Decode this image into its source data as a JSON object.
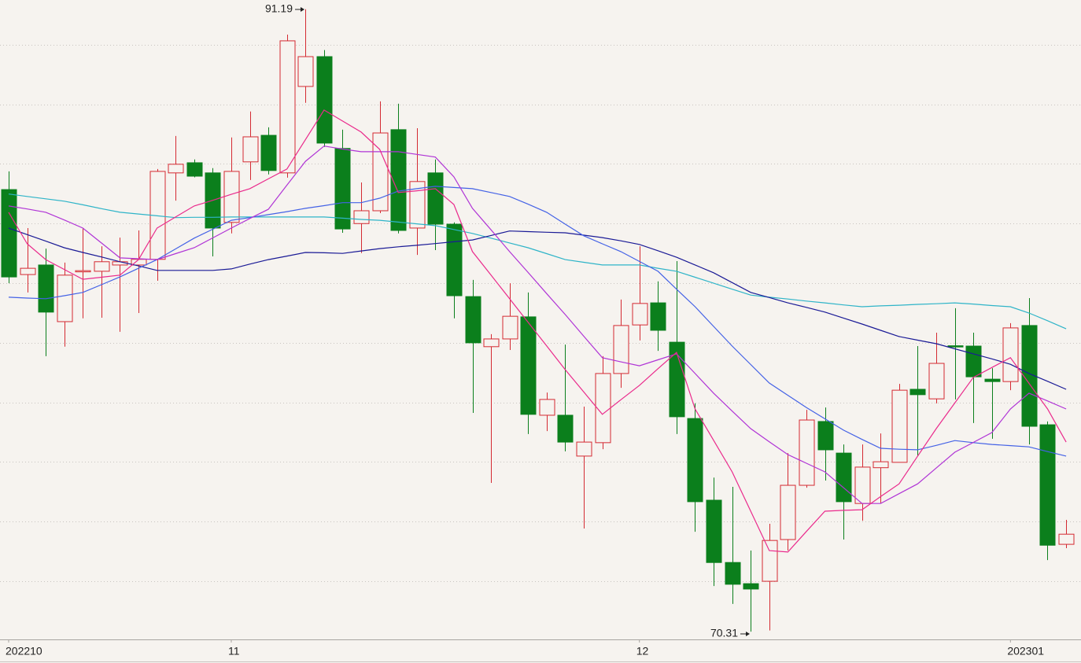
{
  "chart_data": {
    "type": "candlestick",
    "categories": [
      "202210",
      null,
      null,
      null,
      null,
      null,
      null,
      null,
      null,
      null,
      null,
      null,
      "11",
      null,
      null,
      null,
      null,
      null,
      null,
      null,
      null,
      null,
      null,
      null,
      null,
      null,
      null,
      null,
      null,
      null,
      null,
      null,
      null,
      null,
      "12",
      null,
      null,
      null,
      null,
      null,
      null,
      null,
      null,
      null,
      null,
      null,
      null,
      null,
      null,
      null,
      null,
      null,
      null,
      null,
      "202301",
      null,
      null,
      null
    ],
    "open": [
      85.14,
      82.29,
      82.61,
      80.71,
      82.38,
      82.4,
      82.61,
      82.61,
      82.8,
      85.7,
      86.04,
      85.7,
      84.04,
      86.07,
      86.96,
      85.7,
      88.6,
      89.6,
      86.52,
      84.0,
      84.43,
      87.15,
      83.85,
      85.7,
      83.98,
      81.55,
      79.87,
      80.13,
      80.87,
      77.57,
      77.57,
      76.2,
      76.65,
      78.97,
      80.6,
      81.34,
      80.02,
      77.46,
      74.72,
      72.63,
      71.92,
      72.0,
      73.4,
      75.22,
      77.36,
      76.3,
      74.61,
      75.81,
      75.99,
      78.44,
      78.12,
      79.9,
      79.89,
      78.78,
      78.7,
      80.58,
      77.25,
      73.24
    ],
    "high": [
      85.75,
      83.85,
      83.16,
      82.69,
      83.85,
      83.24,
      83.53,
      83.77,
      85.83,
      86.94,
      86.15,
      85.86,
      86.89,
      87.76,
      87.23,
      90.34,
      91.19,
      89.82,
      87.15,
      85.38,
      88.1,
      88.02,
      87.2,
      86.15,
      84.04,
      82.11,
      80.29,
      82.0,
      81.69,
      78.33,
      79.94,
      77.86,
      79.55,
      81.45,
      83.24,
      82.06,
      82.74,
      77.97,
      75.48,
      75.17,
      73.03,
      73.93,
      76.3,
      77.75,
      77.83,
      76.59,
      76.59,
      76.96,
      78.62,
      79.89,
      80.34,
      81.16,
      80.34,
      79.15,
      80.66,
      81.5,
      77.36,
      74.06
    ],
    "low": [
      82.0,
      81.69,
      79.55,
      79.87,
      80.82,
      80.84,
      80.37,
      81.0,
      82.08,
      84.77,
      85.55,
      82.9,
      83.67,
      85.46,
      85.65,
      85.54,
      88.05,
      86.57,
      83.69,
      83.01,
      84.35,
      83.67,
      82.95,
      83.11,
      80.82,
      77.65,
      75.3,
      79.76,
      76.94,
      77.04,
      76.36,
      73.77,
      76.43,
      78.49,
      80.08,
      79.73,
      76.94,
      73.66,
      71.84,
      71.24,
      70.31,
      70.35,
      73.03,
      75.14,
      75.38,
      73.4,
      74.03,
      74.61,
      75.99,
      76.2,
      77.97,
      78.1,
      77.31,
      76.78,
      78.41,
      76.59,
      72.71,
      73.11
    ],
    "close": [
      82.21,
      82.5,
      81.03,
      82.27,
      82.42,
      82.72,
      82.72,
      82.8,
      85.75,
      85.99,
      85.59,
      83.85,
      85.75,
      86.91,
      85.78,
      90.13,
      89.6,
      86.7,
      83.82,
      84.43,
      87.04,
      83.77,
      85.41,
      83.98,
      81.58,
      80.0,
      80.13,
      80.89,
      77.6,
      78.1,
      76.67,
      76.67,
      78.97,
      80.58,
      81.32,
      80.42,
      77.52,
      74.67,
      72.63,
      71.9,
      71.74,
      73.37,
      75.22,
      77.41,
      76.41,
      74.67,
      75.83,
      76.01,
      78.41,
      78.26,
      79.31,
      79.87,
      78.86,
      78.7,
      80.5,
      77.2,
      73.21,
      73.58
    ],
    "up_color": "#d42a32",
    "down_color": "#0b7f1c",
    "overlays": [
      {
        "color": "#2fb4c8",
        "values": [
          84.99,
          84.91,
          84.83,
          84.75,
          84.63,
          84.5,
          84.38,
          84.32,
          84.26,
          84.2,
          84.21,
          84.21,
          84.22,
          84.22,
          84.22,
          84.22,
          84.22,
          84.22,
          84.18,
          84.14,
          84.11,
          84.05,
          83.99,
          83.93,
          83.8,
          83.67,
          83.51,
          83.35,
          83.19,
          82.99,
          82.79,
          82.7,
          82.61,
          82.61,
          82.61,
          82.5,
          82.4,
          82.2,
          82.0,
          81.8,
          81.6,
          81.53,
          81.47,
          81.4,
          81.34,
          81.27,
          81.21,
          81.24,
          81.26,
          81.29,
          81.31,
          81.34,
          81.3,
          81.25,
          81.21,
          81.0,
          80.74,
          80.47
        ]
      },
      {
        "color": "#1a1a96",
        "values": [
          83.85,
          83.63,
          83.41,
          83.19,
          83.03,
          82.88,
          82.72,
          82.58,
          82.43,
          82.43,
          82.43,
          82.43,
          82.48,
          82.64,
          82.79,
          82.91,
          83.03,
          83.02,
          83.0,
          83.08,
          83.16,
          83.22,
          83.27,
          83.33,
          83.39,
          83.45,
          83.6,
          83.75,
          83.73,
          83.71,
          83.69,
          83.61,
          83.53,
          83.42,
          83.3,
          83.09,
          82.87,
          82.61,
          82.35,
          82.02,
          81.69,
          81.52,
          81.34,
          81.19,
          81.03,
          80.83,
          80.63,
          80.42,
          80.21,
          80.09,
          79.97,
          79.8,
          79.63,
          79.46,
          79.28,
          78.97,
          78.71,
          78.44
        ]
      },
      {
        "color": "#4462e6",
        "values": [
          81.53,
          81.5,
          81.48,
          81.58,
          81.69,
          81.95,
          82.21,
          82.5,
          82.79,
          83.15,
          83.51,
          83.81,
          84.11,
          84.2,
          84.3,
          84.4,
          84.51,
          84.6,
          84.7,
          84.7,
          84.85,
          85.09,
          85.17,
          85.25,
          85.21,
          85.17,
          85.04,
          84.91,
          84.65,
          84.38,
          83.98,
          83.59,
          83.32,
          83.06,
          82.73,
          82.4,
          81.8,
          81.21,
          80.55,
          79.89,
          79.27,
          78.65,
          78.24,
          77.83,
          77.45,
          77.07,
          76.76,
          76.46,
          76.43,
          76.41,
          76.56,
          76.72,
          76.65,
          76.59,
          76.55,
          76.51,
          76.35,
          76.2
        ]
      },
      {
        "color": "#b034d6",
        "values": [
          84.59,
          84.49,
          84.38,
          84.12,
          83.85,
          83.35,
          82.85,
          82.82,
          82.79,
          82.99,
          83.19,
          83.52,
          83.85,
          84.17,
          84.48,
          85.29,
          86.09,
          86.6,
          86.5,
          86.41,
          86.41,
          86.41,
          86.32,
          86.23,
          85.57,
          84.51,
          83.79,
          83.06,
          82.36,
          81.65,
          80.95,
          80.22,
          79.5,
          79.36,
          79.23,
          79.43,
          79.63,
          78.97,
          78.31,
          77.71,
          77.12,
          76.68,
          76.25,
          75.96,
          75.67,
          75.14,
          74.61,
          74.61,
          74.94,
          75.27,
          75.8,
          76.33,
          76.66,
          76.99,
          77.78,
          78.31,
          78.05,
          77.78
        ]
      },
      {
        "color": "#ea2a8c",
        "values": [
          84.38,
          83.32,
          82.79,
          82.46,
          82.13,
          82.2,
          82.27,
          82.79,
          83.85,
          84.22,
          84.59,
          84.78,
          84.98,
          85.17,
          85.5,
          85.83,
          86.82,
          87.81,
          87.44,
          87.07,
          86.49,
          85.04,
          85.1,
          85.17,
          84.64,
          83.06,
          82.27,
          81.48,
          80.69,
          79.9,
          79.1,
          78.35,
          77.6,
          78.09,
          78.57,
          79.13,
          79.68,
          77.78,
          76.73,
          75.67,
          74.35,
          73.03,
          72.98,
          73.67,
          74.35,
          74.38,
          74.4,
          74.84,
          75.27,
          76.2,
          77.12,
          77.98,
          78.84,
          79.17,
          79.5,
          78.64,
          77.78,
          76.67
        ]
      }
    ],
    "ylim": [
      70.05,
      91.5
    ],
    "yticks": [
      72,
      74,
      76,
      78,
      80,
      82,
      84,
      86,
      88,
      90
    ],
    "grid": true
  }
}
